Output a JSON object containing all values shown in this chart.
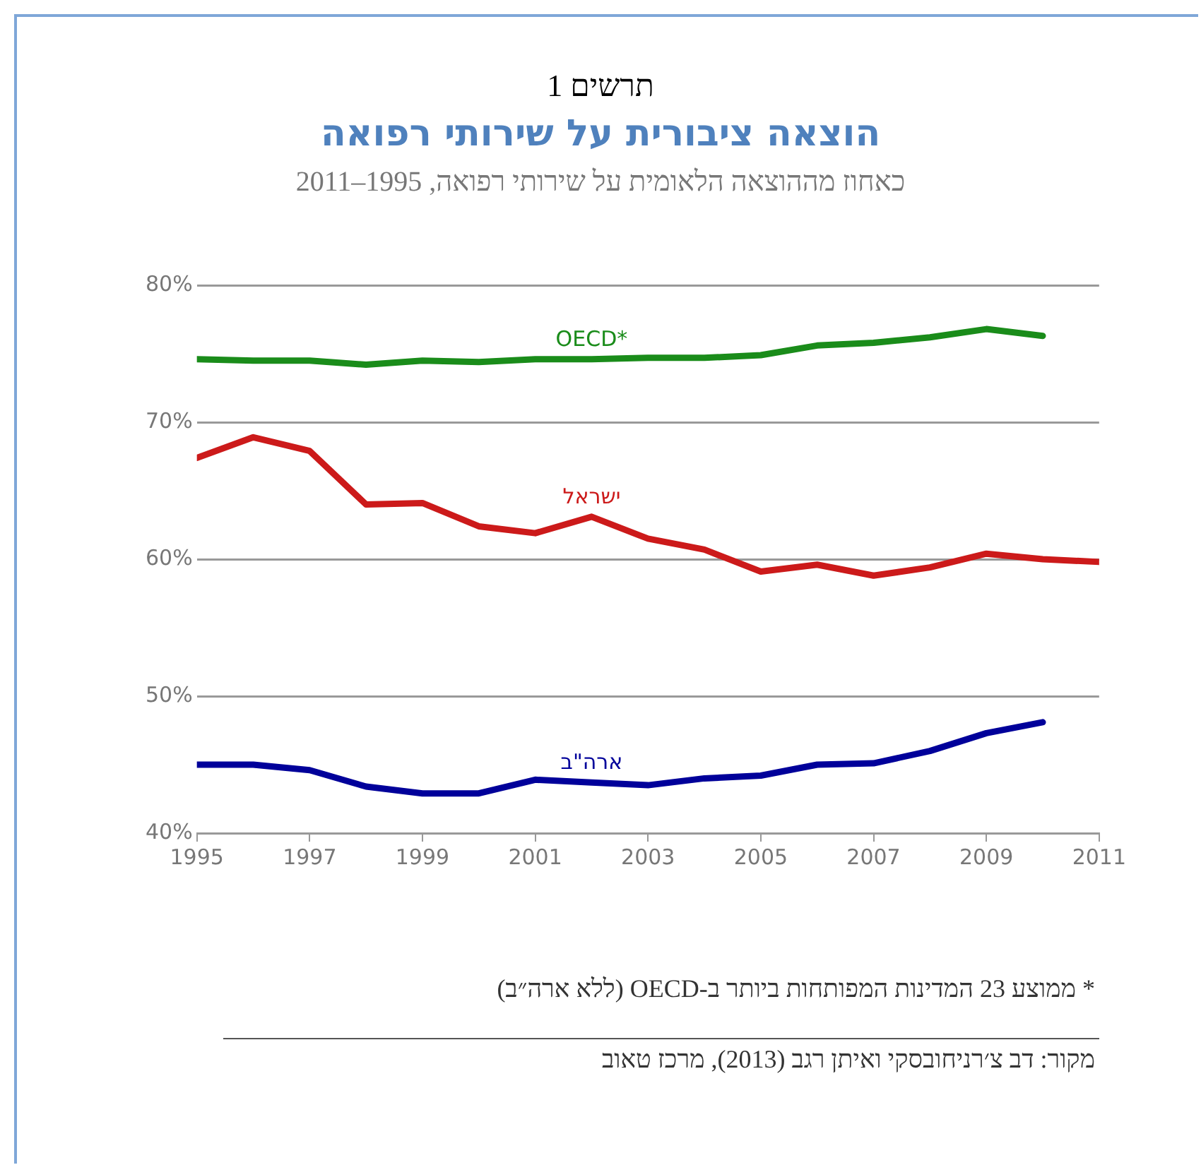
{
  "chart_data": {
    "type": "line",
    "title": "הוצאה ציבורית על שירותי רפואה",
    "subtitle": "כאחוז מההוצאה הלאומית על שירותי רפואה, 1995–2011",
    "annotations": [
      "תרשים 1",
      "* ממוצע 23 המדינות המפותחות ביותר ב-OECD (ללא ארה״ב)",
      "מקור: דב צ׳רניחובסקי ואיתן רגב (2013), מרכז טאוב"
    ],
    "x": [
      1995,
      1996,
      1997,
      1998,
      1999,
      2000,
      2001,
      2002,
      2003,
      2004,
      2005,
      2006,
      2007,
      2008,
      2009,
      2010,
      2011
    ],
    "series": [
      {
        "name": "OECD*",
        "color": "#1a8c1a",
        "values": [
          74.6,
          74.5,
          74.5,
          74.2,
          74.5,
          74.4,
          74.6,
          74.6,
          74.7,
          74.7,
          74.9,
          75.6,
          75.8,
          76.2,
          76.8,
          76.3,
          null
        ]
      },
      {
        "name": "ישראל",
        "color": "#cc1a1a",
        "values": [
          67.4,
          68.9,
          67.9,
          64.0,
          64.1,
          62.4,
          61.9,
          63.1,
          61.5,
          60.7,
          59.1,
          59.6,
          58.8,
          59.4,
          60.4,
          60.0,
          59.8
        ]
      },
      {
        "name": "ארה\"ב",
        "color": "#00009a",
        "values": [
          45.0,
          45.0,
          44.6,
          43.4,
          42.9,
          42.9,
          43.9,
          43.7,
          43.5,
          44.0,
          44.2,
          45.0,
          45.1,
          46.0,
          47.3,
          48.1,
          null
        ]
      }
    ],
    "xlim": [
      1995,
      2011
    ],
    "xticks": [
      1995,
      1997,
      1999,
      2001,
      2003,
      2005,
      2007,
      2009,
      2011
    ],
    "ylim": [
      40,
      80
    ],
    "yticks": [
      {
        "value": 40,
        "label": "40%"
      },
      {
        "value": 50,
        "label": "50%"
      },
      {
        "value": 60,
        "label": "60%"
      },
      {
        "value": 70,
        "label": "70%"
      },
      {
        "value": 80,
        "label": "80%"
      }
    ],
    "grid": "y",
    "legend": false,
    "marker": "none",
    "line_style": "solid"
  }
}
